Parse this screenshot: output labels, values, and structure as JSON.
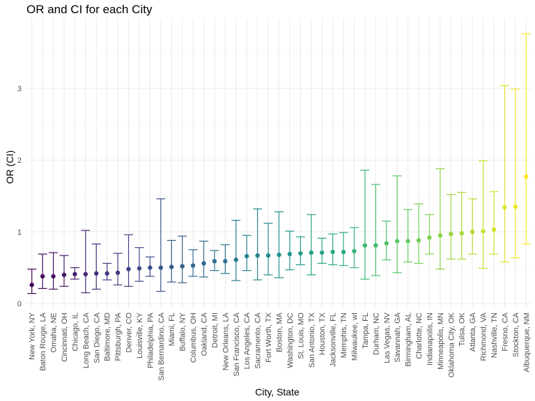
{
  "chart_data": {
    "type": "scatter",
    "title": "OR and CI for each City",
    "xlabel": "City, State",
    "ylabel": "OR (CI)",
    "ylim": [
      0,
      3.9
    ],
    "yticks": [
      0,
      1,
      2,
      3
    ],
    "grid": true,
    "legend": "none",
    "color_scale": "viridis (by category order)",
    "categories": [
      "New York, NY",
      "Baton Rouge, LA",
      "Omaha, NE",
      "Cincinnati, OH",
      "Chicago, IL",
      "Long Beach, CA",
      "San Diego, CA",
      "Baltimore, MD",
      "Pittsburgh, PA",
      "Denver, CO",
      "Louisville, KY",
      "Philadelphia, PA",
      "San Bernardino, CA",
      "Miami, FL",
      "Buffalo, NY",
      "Columbus, OH",
      "Oakland, CA",
      "Detroit, MI",
      "New Orleans, LA",
      "San Francisco, CA",
      "Los Angeles, CA",
      "Sacramento, CA",
      "Fort Worth, TX",
      "Boston, MA",
      "Washington, DC",
      "St. Louis, MO",
      "San Antonio, TX",
      "Houston, TX",
      "Jacksonville, FL",
      "Memphis, TN",
      "Milwaukee, wI",
      "Tampa, FL",
      "Durham, NC",
      "Las Vegas, NV",
      "Savannah, GA",
      "Birmingham, AL",
      "Charlotte, NC",
      "Indianapolis, IN",
      "Minneapolis, MN",
      "Oklahoma City, OK",
      "Tulsa, OK",
      "Atlanta, GA",
      "Richmond, VA",
      "Nashville, TN",
      "Fresno, CA",
      "Stockton, CA",
      "Albuquerque, NM"
    ],
    "or": [
      0.26,
      0.38,
      0.38,
      0.4,
      0.41,
      0.41,
      0.42,
      0.42,
      0.43,
      0.48,
      0.49,
      0.5,
      0.5,
      0.51,
      0.52,
      0.53,
      0.56,
      0.59,
      0.59,
      0.61,
      0.66,
      0.67,
      0.67,
      0.68,
      0.69,
      0.7,
      0.71,
      0.71,
      0.72,
      0.72,
      0.73,
      0.81,
      0.81,
      0.84,
      0.87,
      0.87,
      0.88,
      0.92,
      0.95,
      0.97,
      0.98,
      1.0,
      1.01,
      1.03,
      1.34,
      1.35,
      1.77
    ],
    "ci_low": [
      0.14,
      0.21,
      0.2,
      0.24,
      0.34,
      0.15,
      0.2,
      0.33,
      0.26,
      0.24,
      0.31,
      0.38,
      0.17,
      0.3,
      0.29,
      0.38,
      0.37,
      0.46,
      0.42,
      0.32,
      0.46,
      0.33,
      0.4,
      0.36,
      0.47,
      0.54,
      0.4,
      0.56,
      0.54,
      0.53,
      0.5,
      0.34,
      0.39,
      0.61,
      0.43,
      0.58,
      0.56,
      0.69,
      0.48,
      0.62,
      0.62,
      0.69,
      0.49,
      0.69,
      0.58,
      0.64,
      0.83
    ],
    "ci_high": [
      0.48,
      0.69,
      0.71,
      0.67,
      0.5,
      1.02,
      0.83,
      0.56,
      0.7,
      0.96,
      0.78,
      0.65,
      1.46,
      0.88,
      0.94,
      0.75,
      0.87,
      0.74,
      0.82,
      1.16,
      0.95,
      1.32,
      1.12,
      1.28,
      1.01,
      0.93,
      1.24,
      0.91,
      0.97,
      0.99,
      1.06,
      1.86,
      1.66,
      1.15,
      1.78,
      1.31,
      1.39,
      1.24,
      1.88,
      1.52,
      1.55,
      1.46,
      1.99,
      1.56,
      3.04,
      2.99,
      3.76
    ]
  }
}
